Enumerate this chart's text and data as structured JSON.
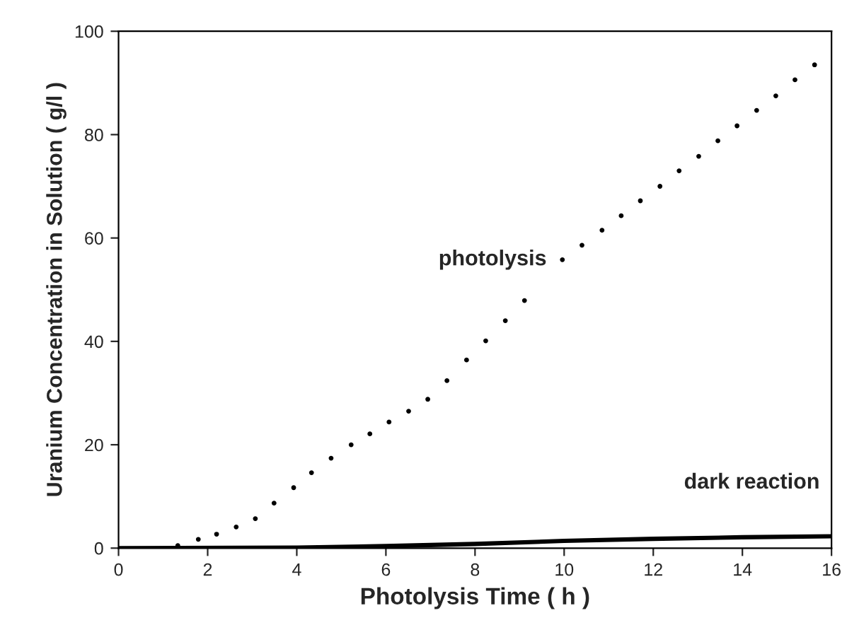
{
  "chart_data": {
    "type": "scatter",
    "xlabel": "Photolysis Time ( h )",
    "ylabel": "Uranium Concentration in Solution ( g/l )",
    "xlim": [
      0,
      16
    ],
    "xticks": [
      0,
      2,
      4,
      6,
      8,
      10,
      12,
      14,
      16
    ],
    "ylim": [
      0,
      100
    ],
    "yticks": [
      0,
      20,
      40,
      60,
      80,
      100
    ],
    "grid": false,
    "series": [
      {
        "name": "photolysis",
        "marker": "circle",
        "color": "#000000",
        "x": [
          1.33,
          1.79,
          2.2,
          2.64,
          3.07,
          3.49,
          3.93,
          4.33,
          4.77,
          5.22,
          5.64,
          6.07,
          6.51,
          6.94,
          7.37,
          7.81,
          8.24,
          8.68,
          9.11,
          9.96,
          10.4,
          10.85,
          11.28,
          11.71,
          12.15,
          12.58,
          13.02,
          13.45,
          13.88,
          14.32,
          14.75,
          15.18,
          15.62
        ],
        "values": [
          0.5,
          1.7,
          2.7,
          4.1,
          5.7,
          8.7,
          11.7,
          14.6,
          17.4,
          20.0,
          22.1,
          24.4,
          26.5,
          28.8,
          32.4,
          36.4,
          40.1,
          44.0,
          47.9,
          55.8,
          58.6,
          61.5,
          64.3,
          67.2,
          70.0,
          73.0,
          75.8,
          78.8,
          81.7,
          84.7,
          87.5,
          90.6,
          93.5
        ]
      },
      {
        "name": "dark reaction",
        "type": "line",
        "color": "#000000",
        "line_style": "solid",
        "x": [
          0,
          4,
          6,
          8,
          10,
          12,
          14,
          16
        ],
        "values": [
          0,
          0.1,
          0.4,
          0.8,
          1.4,
          1.8,
          2.1,
          2.3
        ]
      }
    ]
  }
}
